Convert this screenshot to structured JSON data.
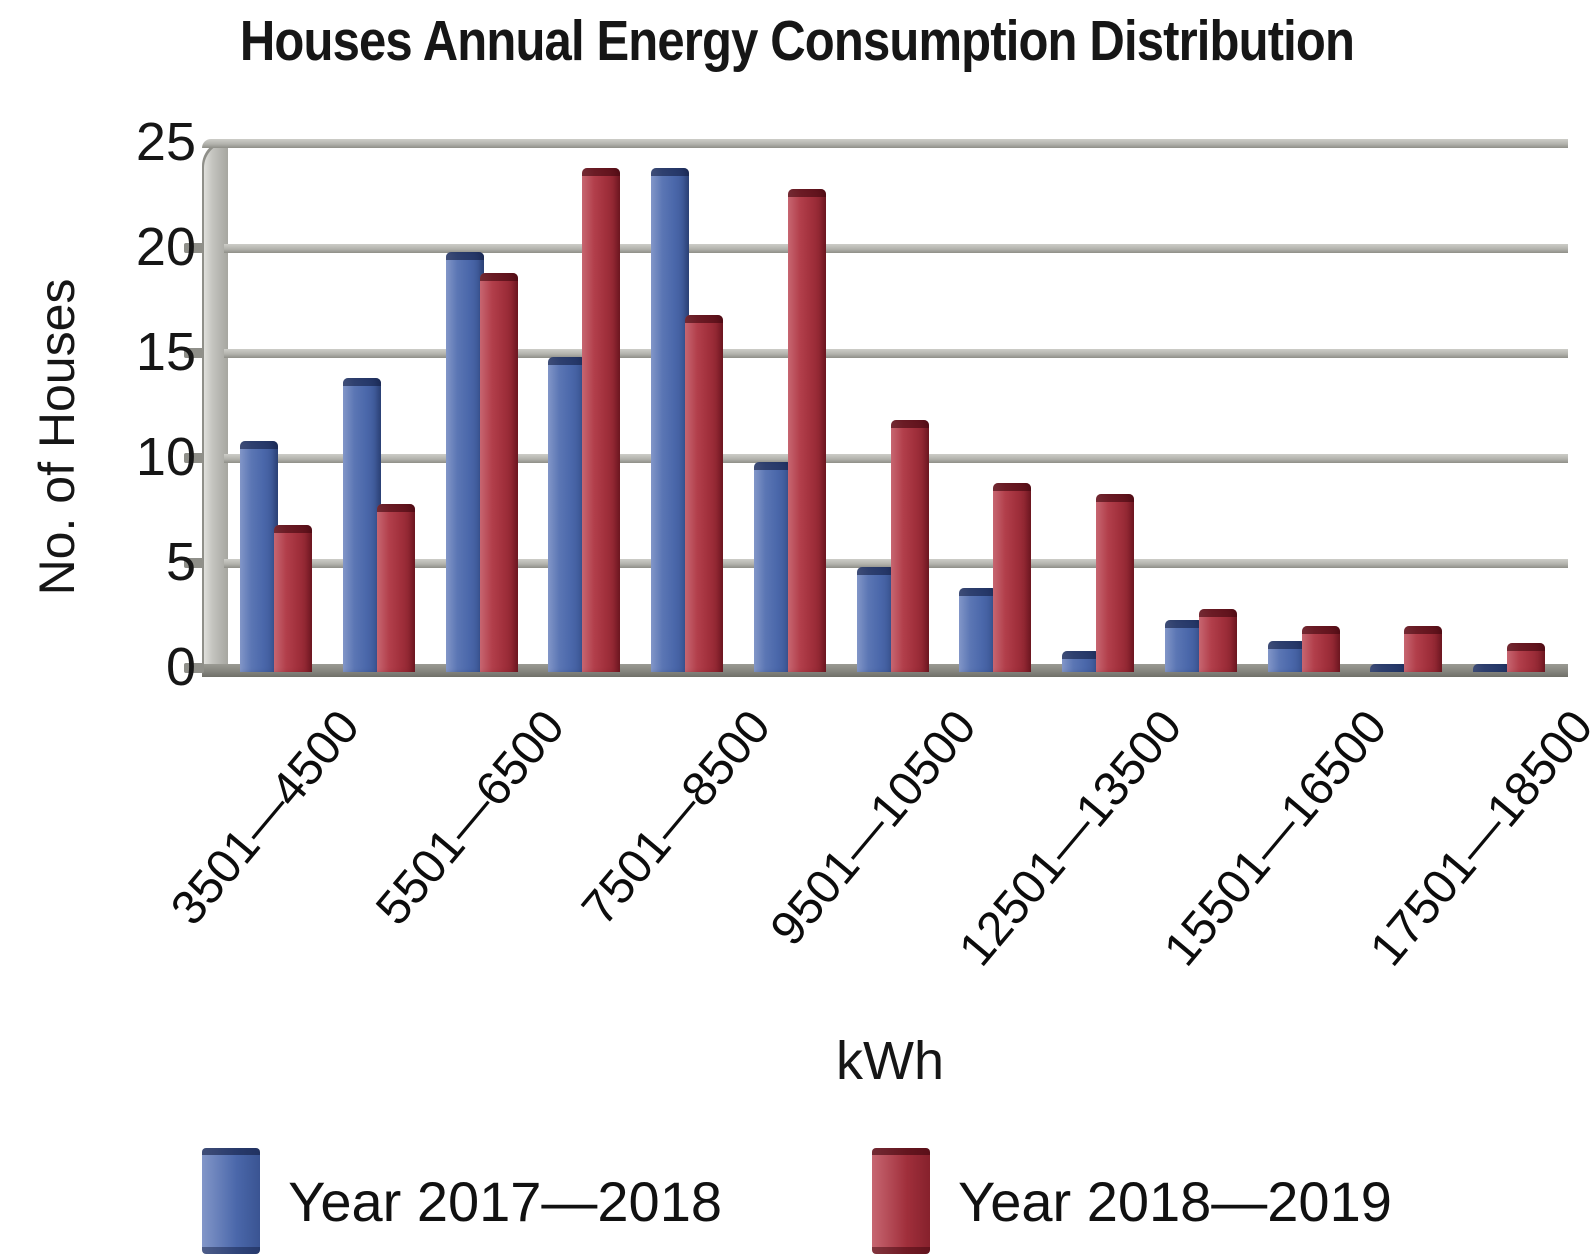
{
  "title": "Houses Annual Energy Consumption Distribution",
  "y_axis": {
    "label": "No. of Houses",
    "ticks": [
      0,
      5,
      10,
      15,
      20,
      25
    ]
  },
  "x_axis": {
    "label": "kWh"
  },
  "legend": {
    "items": [
      {
        "label": "Year 2017—2018",
        "color": "#4e6cae"
      },
      {
        "label": "Year 2018—2019",
        "color": "#ac3743"
      }
    ]
  },
  "chart_data": {
    "type": "bar",
    "title": "Houses Annual Energy Consumption Distribution",
    "xlabel": "kWh",
    "ylabel": "No. of Houses",
    "ylim": [
      0,
      25
    ],
    "y_ticks": [
      0,
      5,
      10,
      15,
      20,
      25
    ],
    "grid": true,
    "legend_position": "bottom",
    "group_count": 13,
    "x_tick_labels": [
      "3501—4500",
      "5501—6500",
      "7501—8500",
      "9501—10500",
      "12501—13500",
      "15501—16500",
      "17501—18500"
    ],
    "x_tick_group_indices": [
      0,
      2,
      4,
      6,
      8,
      10,
      12
    ],
    "series": [
      {
        "name": "Year 2017—2018",
        "color": "#4e6cae",
        "values": [
          11,
          14,
          20,
          15,
          24,
          10,
          5,
          4,
          1,
          2.5,
          1.5,
          0.4,
          0.4
        ]
      },
      {
        "name": "Year 2018—2019",
        "color": "#ac3743",
        "values": [
          7,
          8,
          19,
          24,
          17,
          23,
          12,
          9,
          8.5,
          3,
          2.2,
          2.2,
          1.4
        ]
      }
    ]
  }
}
